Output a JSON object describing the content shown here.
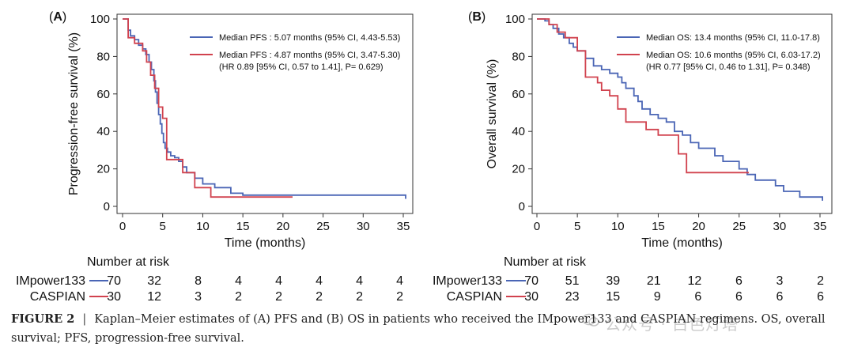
{
  "caption": {
    "label": "FIGURE 2",
    "separator": "|",
    "text": "Kaplan–Meier estimates of (A) PFS and (B) OS in patients who received the IMpower133 and CASPIAN regimens. OS, overall survival; PFS, progression-free survival."
  },
  "watermark": "公众号 · 白色灯塔",
  "colors": {
    "impower": "#4a65b5",
    "caspian": "#d1424e"
  },
  "chart_data": [
    {
      "type": "line",
      "panel_label": "(A)",
      "xlabel": "Time (months)",
      "ylabel": "Progression-free survival (%)",
      "xlim": [
        0,
        35
      ],
      "ylim": [
        0,
        100
      ],
      "xticks": [
        0,
        5,
        10,
        15,
        20,
        25,
        30,
        35
      ],
      "yticks": [
        0,
        20,
        40,
        60,
        80,
        100
      ],
      "series": [
        {
          "name": "IMpower133",
          "color": "#4a65b5",
          "step": true,
          "x": [
            0,
            0.7,
            1.0,
            1.5,
            2.0,
            2.5,
            2.9,
            3.3,
            3.6,
            3.9,
            4.1,
            4.3,
            4.5,
            4.7,
            4.9,
            5.1,
            5.3,
            5.6,
            6.0,
            6.5,
            7.0,
            7.5,
            8.0,
            9.0,
            10.0,
            11.5,
            13.5,
            15.0,
            35.3
          ],
          "y": [
            100,
            94,
            91,
            89,
            86,
            84,
            81,
            77,
            73,
            67,
            61,
            55,
            49,
            44,
            39,
            34,
            31,
            29,
            27,
            26,
            24,
            21,
            18,
            15,
            12,
            10,
            7,
            6,
            4
          ]
        },
        {
          "name": "CASPIAN",
          "color": "#d1424e",
          "step": true,
          "x": [
            0,
            0.7,
            1.5,
            2.5,
            3.0,
            3.5,
            4.0,
            4.5,
            5.0,
            5.5,
            7.5,
            9.0,
            11.0,
            18.0,
            21.2
          ],
          "y": [
            100,
            90,
            87,
            83,
            77,
            70,
            63,
            53,
            47,
            25,
            18,
            10,
            5,
            5,
            5
          ]
        }
      ],
      "legend": {
        "position": "top-right",
        "entries": [
          {
            "color": "#4a65b5",
            "lines": [
              "Median PFS : 5.07 months (95% CI, 4.43-5.53)"
            ]
          },
          {
            "color": "#d1424e",
            "lines": [
              "Median PFS : 4.87 months (95% CI, 3.47-5.30)",
              "(HR 0.89 [95% CI, 0.57 to 1.41], P= 0.629)"
            ]
          }
        ]
      },
      "risk_table": {
        "title": "Number at risk",
        "rows": [
          {
            "name": "IMpower133",
            "color": "#4a65b5",
            "values": [
              "70",
              "32",
              "8",
              "4",
              "4",
              "4",
              "4",
              "4"
            ]
          },
          {
            "name": "CASPIAN",
            "color": "#d1424e",
            "values": [
              "30",
              "12",
              "3",
              "2",
              "2",
              "2",
              "2",
              "2"
            ]
          }
        ]
      }
    },
    {
      "type": "line",
      "panel_label": "(B)",
      "xlabel": "Time (months)",
      "ylabel": "Overall survival (%)",
      "xlim": [
        0,
        35
      ],
      "ylim": [
        0,
        100
      ],
      "xticks": [
        0,
        5,
        10,
        15,
        20,
        25,
        30,
        35
      ],
      "yticks": [
        0,
        20,
        40,
        60,
        80,
        100
      ],
      "series": [
        {
          "name": "IMpower133",
          "color": "#4a65b5",
          "step": true,
          "x": [
            0,
            1.0,
            1.5,
            2.0,
            2.7,
            3.3,
            4.0,
            4.5,
            5.0,
            6.0,
            7.0,
            8.0,
            9.0,
            10.0,
            10.5,
            11.0,
            12.0,
            12.5,
            13.0,
            14.0,
            15.0,
            16.0,
            17.0,
            18.0,
            19.0,
            20.0,
            22.0,
            23.0,
            25.0,
            26.0,
            27.0,
            29.5,
            30.5,
            32.5,
            35.3
          ],
          "y": [
            100,
            99,
            97,
            95,
            92,
            90,
            87,
            85,
            83,
            79,
            75,
            73,
            71,
            69,
            66,
            63,
            59,
            56,
            52,
            49,
            47,
            45,
            40,
            38,
            34,
            31,
            27,
            24,
            20,
            17,
            14,
            11,
            8,
            5,
            3
          ]
        },
        {
          "name": "CASPIAN",
          "color": "#d1424e",
          "step": true,
          "x": [
            0,
            1.5,
            2.5,
            3.5,
            5.0,
            6.0,
            7.5,
            8.0,
            9.0,
            10.0,
            11.0,
            13.5,
            15.0,
            17.5,
            18.5,
            26.2
          ],
          "y": [
            100,
            97,
            93,
            90,
            83,
            69,
            66,
            62,
            59,
            52,
            45,
            41,
            38,
            28,
            18,
            18
          ]
        }
      ],
      "legend": {
        "position": "top-right",
        "entries": [
          {
            "color": "#4a65b5",
            "lines": [
              "Median OS: 13.4 months (95% CI, 11.0-17.8)"
            ]
          },
          {
            "color": "#d1424e",
            "lines": [
              "Median OS: 10.6 months (95% CI, 6.03-17.2)",
              "(HR 0.77 [95% CI, 0.46 to 1.31], P= 0.348)"
            ]
          }
        ]
      },
      "risk_table": {
        "title": "Number at risk",
        "rows": [
          {
            "name": "IMpower133",
            "color": "#4a65b5",
            "values": [
              "70",
              "51",
              "39",
              "21",
              "12",
              "6",
              "3",
              "2"
            ]
          },
          {
            "name": "CASPIAN",
            "color": "#d1424e",
            "values": [
              "30",
              "23",
              "15",
              "9",
              "6",
              "6",
              "6",
              "6"
            ]
          }
        ]
      }
    }
  ]
}
